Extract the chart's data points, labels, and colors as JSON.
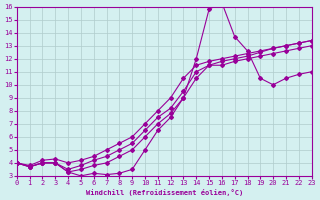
{
  "xlabel": "Windchill (Refroidissement éolien,°C)",
  "ylabel": "",
  "bg_color": "#d4f0f0",
  "grid_color": "#b0cccc",
  "line_color": "#990099",
  "xlim": [
    0,
    23
  ],
  "ylim": [
    3,
    16
  ],
  "xticks": [
    0,
    1,
    2,
    3,
    4,
    5,
    6,
    7,
    8,
    9,
    10,
    11,
    12,
    13,
    14,
    15,
    16,
    17,
    18,
    19,
    20,
    21,
    22,
    23
  ],
  "yticks": [
    3,
    4,
    5,
    6,
    7,
    8,
    9,
    10,
    11,
    12,
    13,
    14,
    15,
    16
  ],
  "line1_x": [
    0,
    1,
    2,
    3,
    4,
    5,
    6,
    7,
    8,
    9,
    10,
    11,
    12,
    13,
    14,
    15,
    16,
    17,
    18,
    19,
    20,
    21,
    22,
    23
  ],
  "line1_y": [
    4.0,
    3.7,
    4.0,
    4.0,
    3.3,
    3.0,
    3.2,
    3.1,
    3.2,
    3.5,
    5.0,
    6.5,
    7.5,
    9.0,
    12.0,
    15.8,
    16.3,
    13.7,
    12.6,
    10.5,
    10.0,
    10.5,
    10.8,
    11.0
  ],
  "line2_x": [
    0,
    1,
    2,
    3,
    4,
    5,
    6,
    7,
    8,
    9,
    10,
    11,
    12,
    13,
    14,
    15,
    16,
    17,
    18,
    19,
    20,
    21,
    22,
    23
  ],
  "line2_y": [
    4.0,
    3.7,
    4.0,
    4.0,
    3.3,
    3.5,
    3.8,
    4.0,
    4.5,
    5.0,
    6.0,
    7.0,
    7.8,
    9.0,
    10.5,
    11.5,
    11.8,
    12.0,
    12.2,
    12.5,
    12.8,
    13.0,
    13.2,
    13.4
  ],
  "line3_x": [
    0,
    1,
    2,
    3,
    4,
    5,
    6,
    7,
    8,
    9,
    10,
    11,
    12,
    13,
    14,
    15,
    16,
    17,
    18,
    19,
    20,
    21,
    22,
    23
  ],
  "line3_y": [
    4.0,
    3.7,
    4.0,
    4.0,
    3.5,
    3.8,
    4.2,
    4.5,
    5.0,
    5.5,
    6.5,
    7.5,
    8.2,
    9.5,
    11.0,
    11.5,
    11.5,
    11.8,
    12.0,
    12.2,
    12.4,
    12.6,
    12.8,
    13.0
  ],
  "line4_x": [
    0,
    1,
    2,
    3,
    4,
    5,
    6,
    7,
    8,
    9,
    10,
    11,
    12,
    13,
    14,
    15,
    16,
    17,
    18,
    19,
    20,
    21,
    22,
    23
  ],
  "line4_y": [
    4.0,
    3.8,
    4.2,
    4.3,
    4.0,
    4.2,
    4.5,
    5.0,
    5.5,
    6.0,
    7.0,
    8.0,
    9.0,
    10.5,
    11.5,
    11.8,
    12.0,
    12.2,
    12.4,
    12.6,
    12.8,
    13.0,
    13.2,
    13.4
  ]
}
